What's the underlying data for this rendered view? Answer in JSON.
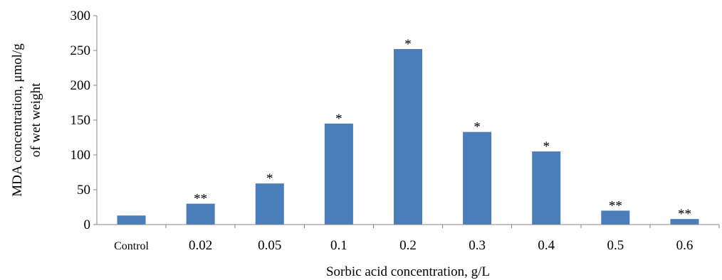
{
  "chart_data": {
    "type": "bar",
    "title": "",
    "xlabel": "Sorbic acid concentration, g/L",
    "ylabel_lines": [
      "MDA concentration, μmol/g",
      "of wet weight"
    ],
    "ylim": [
      0,
      300
    ],
    "yticks": [
      "0",
      "50",
      "100",
      "150",
      "200",
      "250",
      "300"
    ],
    "ytick_values": [
      0,
      50,
      100,
      150,
      200,
      250,
      300
    ],
    "grid": false,
    "legend": "none",
    "categories": [
      "Control",
      "0.02",
      "0.05",
      "0.1",
      "0.2",
      "0.3",
      "0.4",
      "0.5",
      "0.6"
    ],
    "values": [
      13,
      30,
      59,
      145,
      252,
      133,
      105,
      20,
      8
    ],
    "significance": [
      "",
      "**",
      "*",
      "*",
      "*",
      "*",
      "*",
      "**",
      "**"
    ],
    "bar_color": "#4a7ebb"
  }
}
